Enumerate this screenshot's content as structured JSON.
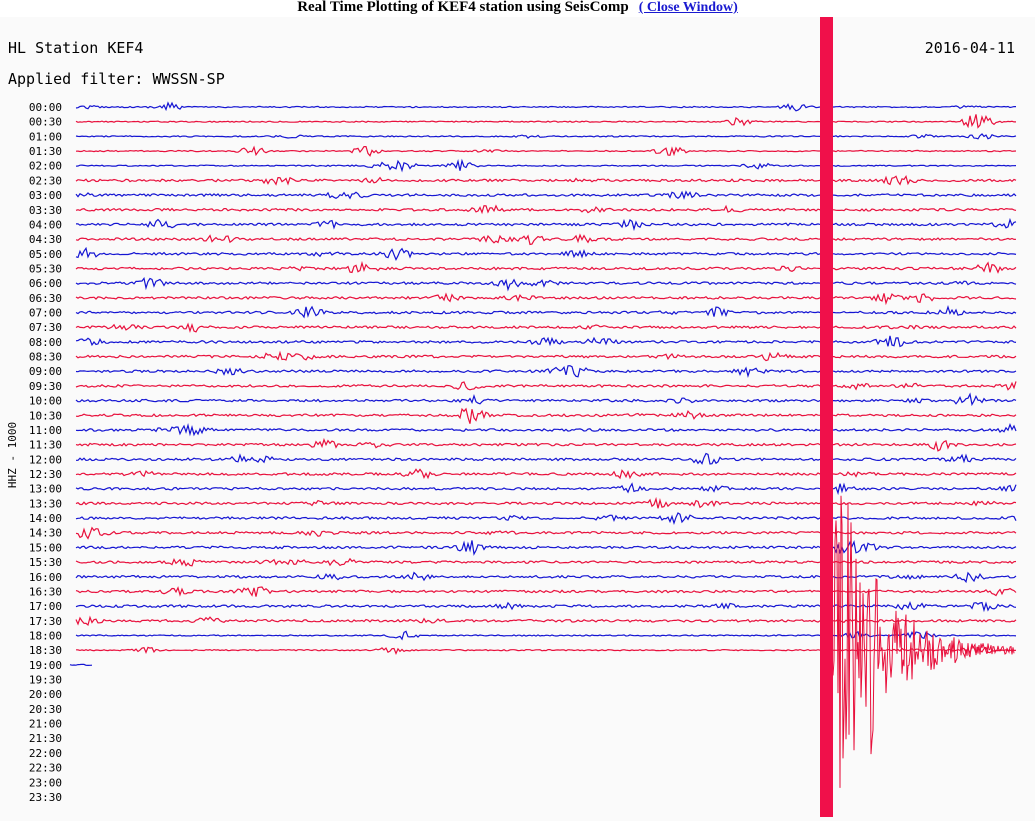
{
  "header": {
    "title": "Real Time Plotting of KEF4 station using SeisComp",
    "link": "( Close Window)"
  },
  "plot": {
    "station": "HL Station KEF4",
    "date": "2016-04-11",
    "filter": "Applied filter: WWSSN-SP",
    "channel": "HHZ - 1000",
    "times": [
      "00:00",
      "00:30",
      "01:00",
      "01:30",
      "02:00",
      "02:30",
      "03:00",
      "03:30",
      "04:00",
      "04:30",
      "05:00",
      "05:30",
      "06:00",
      "06:30",
      "07:00",
      "07:30",
      "08:00",
      "08:30",
      "09:00",
      "09:30",
      "10:00",
      "10:30",
      "11:00",
      "11:30",
      "12:00",
      "12:30",
      "13:00",
      "13:30",
      "14:00",
      "14:30",
      "15:00",
      "15:30",
      "16:00",
      "16:30",
      "17:00",
      "17:30",
      "18:00",
      "18:30",
      "19:00",
      "19:30",
      "20:00",
      "20:30",
      "21:00",
      "21:30",
      "22:00",
      "22:30",
      "23:00",
      "23:30"
    ]
  }
}
